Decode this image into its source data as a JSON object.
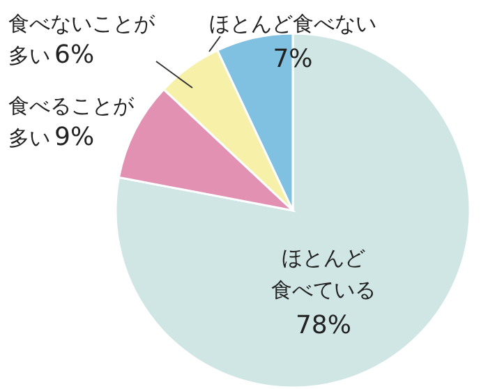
{
  "chart_data": {
    "type": "pie",
    "categories": [
      "ほとんど食べている",
      "食べることが多い",
      "食べないことが多い",
      "ほとんど食べない"
    ],
    "values": [
      78,
      9,
      6,
      7
    ],
    "colors": [
      "#cfe6e4",
      "#e291b2",
      "#f6f0a8",
      "#80c0e0"
    ],
    "value_labels": [
      "78%",
      "9%",
      "6%",
      "7%"
    ],
    "legend": false
  }
}
